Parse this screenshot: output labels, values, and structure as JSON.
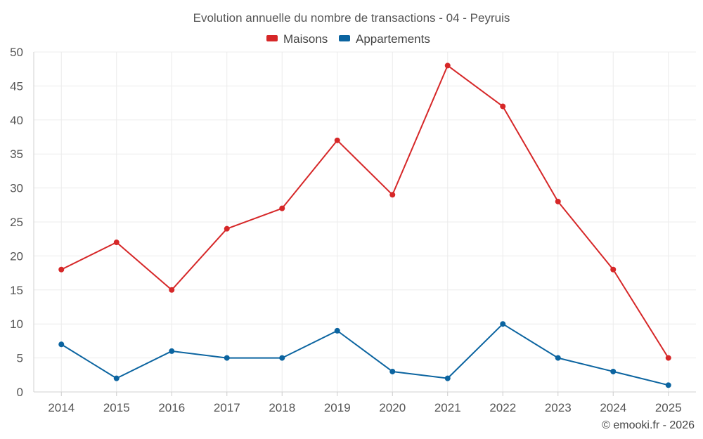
{
  "chart_data": {
    "type": "line",
    "title": "Evolution annuelle du nombre de transactions - 04 - Peyruis",
    "categories": [
      "2014",
      "2015",
      "2016",
      "2017",
      "2018",
      "2019",
      "2020",
      "2021",
      "2022",
      "2023",
      "2024",
      "2025"
    ],
    "series": [
      {
        "name": "Maisons",
        "color": "#d62728",
        "values": [
          18,
          22,
          15,
          24,
          27,
          37,
          29,
          48,
          42,
          28,
          18,
          5
        ]
      },
      {
        "name": "Appartements",
        "color": "#0b64a0",
        "values": [
          7,
          2,
          6,
          5,
          5,
          9,
          3,
          2,
          10,
          5,
          3,
          1
        ]
      }
    ],
    "ylim": [
      0,
      50
    ],
    "yticks": [
      0,
      5,
      10,
      15,
      20,
      25,
      30,
      35,
      40,
      45,
      50
    ],
    "grid": true,
    "legend": "top-center",
    "xlabel": "",
    "ylabel": ""
  },
  "credit": "© emooki.fr - 2026"
}
